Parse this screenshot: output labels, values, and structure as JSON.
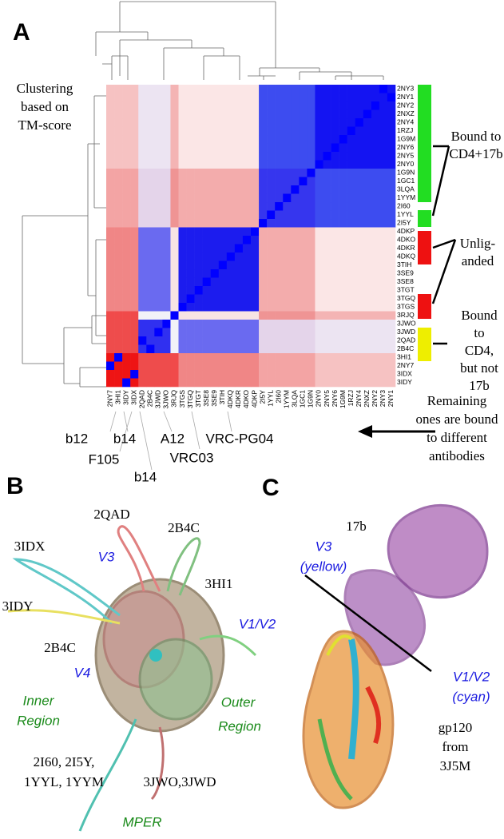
{
  "panel_a": {
    "label": "A",
    "clustering_note": [
      "Clustering",
      "based on",
      "TM-score"
    ],
    "row_labels": [
      "2NY3",
      "2NY1",
      "2NY2",
      "2NXZ",
      "2NY4",
      "1RZJ",
      "1G9M",
      "2NY6",
      "2NY5",
      "2NY0",
      "1G9N",
      "1GC1",
      "3LQA",
      "1YYM",
      "2I60",
      "1YYL",
      "2I5Y",
      "4DKP",
      "4DKO",
      "4DKR",
      "4DKQ",
      "3TIH",
      "3SE9",
      "3SE8",
      "3TGT",
      "3TGQ",
      "3TGS",
      "3RJQ",
      "3JWO",
      "3JWD",
      "2QAD",
      "2B4C",
      "3HI1",
      "2NY7",
      "3IDX",
      "3IDY"
    ],
    "column_labels": [
      "2NY7",
      "3HI1",
      "3IDY",
      "3IDX",
      "2QAD",
      "2B4C",
      "3JWD",
      "3JWO",
      "3RJQ",
      "3TGS",
      "3TGQ",
      "3TGT",
      "3SE8",
      "3SE9",
      "3TIH",
      "4DKQ",
      "4DKR",
      "4DKO",
      "4DKP",
      "2I5Y",
      "1YYL",
      "2I60",
      "1YYM",
      "3LQA",
      "1GC1",
      "1G9N",
      "2NY0",
      "2NY5",
      "2NY6",
      "1G9M",
      "1RZJ",
      "2NY4",
      "2NXZ",
      "2NY2",
      "2NY3",
      "2NY1"
    ],
    "groups": [
      {
        "lines": [
          "Bound to",
          "CD4+17b"
        ]
      },
      {
        "lines": [
          "Unlig-",
          "anded"
        ]
      },
      {
        "lines": [
          "Bound",
          "to",
          "CD4,",
          "but not",
          "17b"
        ]
      },
      {
        "lines": [
          "Remaining",
          "ones are bound",
          "to different",
          "antibodies"
        ]
      }
    ],
    "antibodies": [
      "b12",
      "b14",
      "A12",
      "VRC-PG04",
      "F105",
      "b14",
      "VRC03"
    ]
  },
  "panel_b": {
    "label": "B",
    "labels": [
      "2QAD",
      "2B4C",
      "3IDX",
      "V3",
      "3HI1",
      "3IDY",
      "V1/V2",
      "2B4C",
      "V4",
      "Inner",
      "Region",
      "Outer",
      "Region",
      "2I60, 2I5Y,",
      "1YYL, 1YYM",
      "3JWO,3JWD",
      "MPER"
    ]
  },
  "panel_c": {
    "label": "C",
    "labels": [
      "17b",
      "V3",
      "(yellow)",
      "V1/V2",
      "(cyan)",
      "gp120",
      "from",
      "3J5M"
    ]
  }
}
